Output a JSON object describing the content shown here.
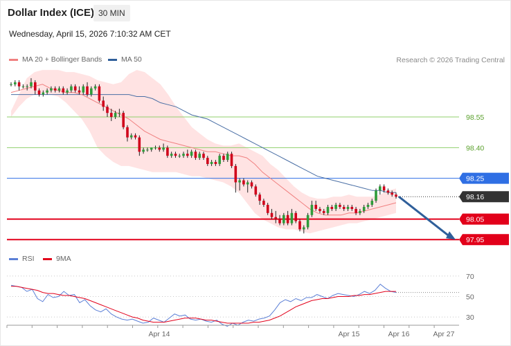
{
  "header": {
    "title": "Dollar Index (ICE)",
    "timeframe": "30 MIN",
    "datetime": "Wednesday, April 15, 2026 7:10:32 AM CET"
  },
  "legend_main": {
    "ma20_label": "MA 20 + Bollinger Bands",
    "ma50_label": "MA 50",
    "credit": "Research © 2026 Trading Central"
  },
  "legend_rsi": {
    "rsi_label": "RSI",
    "ma9_label": "9MA"
  },
  "colors": {
    "up": "#2e9c3a",
    "down": "#d0021b",
    "ma20": "#f08080",
    "ma50": "#4a6fa5",
    "bands": "#ffe3e3",
    "resistance": "#8fcf6b",
    "pivot": "#2f6fe4",
    "support": "#e2001a",
    "rsi": "#5b7fd6",
    "arrow": "#2f5f9a"
  },
  "chart_data": [
    {
      "type": "candlestick",
      "title": "Dollar Index (ICE)",
      "timeframe": "30 MIN",
      "x_ticks": [
        "Apr 14",
        "Apr 15",
        "Apr 16",
        "Apr 27"
      ],
      "ylim": [
        97.91,
        98.75
      ],
      "levels": [
        {
          "value": 98.55,
          "kind": "resistance",
          "label": "98.55"
        },
        {
          "value": 98.4,
          "kind": "resistance",
          "label": "98.40"
        },
        {
          "value": 98.25,
          "kind": "pivot",
          "label": "98.25"
        },
        {
          "value": 98.16,
          "kind": "current",
          "label": "98.16"
        },
        {
          "value": 98.05,
          "kind": "support",
          "label": "98.05"
        },
        {
          "value": 97.95,
          "kind": "support",
          "label": "97.95"
        }
      ],
      "candles": [
        [
          98.71,
          98.72,
          98.7,
          98.71
        ],
        [
          98.71,
          98.73,
          98.7,
          98.72
        ],
        [
          98.72,
          98.73,
          98.68,
          98.7
        ],
        [
          98.7,
          98.71,
          98.69,
          98.7
        ],
        [
          98.7,
          98.71,
          98.68,
          98.7
        ],
        [
          98.7,
          98.74,
          98.69,
          98.72
        ],
        [
          98.72,
          98.73,
          98.66,
          98.68
        ],
        [
          98.68,
          98.69,
          98.65,
          98.66
        ],
        [
          98.66,
          98.68,
          98.65,
          98.67
        ],
        [
          98.67,
          98.69,
          98.66,
          98.68
        ],
        [
          98.68,
          98.7,
          98.67,
          98.69
        ],
        [
          98.69,
          98.7,
          98.67,
          98.68
        ],
        [
          98.68,
          98.7,
          98.67,
          98.69
        ],
        [
          98.69,
          98.7,
          98.66,
          98.67
        ],
        [
          98.67,
          98.69,
          98.66,
          98.68
        ],
        [
          98.68,
          98.71,
          98.67,
          98.7
        ],
        [
          98.7,
          98.71,
          98.67,
          98.68
        ],
        [
          98.68,
          98.7,
          98.66,
          98.67
        ],
        [
          98.67,
          98.71,
          98.66,
          98.7
        ],
        [
          98.7,
          98.72,
          98.65,
          98.66
        ],
        [
          98.66,
          98.7,
          98.65,
          98.69
        ],
        [
          98.69,
          98.71,
          98.68,
          98.7
        ],
        [
          98.7,
          98.71,
          98.62,
          98.63
        ],
        [
          98.63,
          98.65,
          98.58,
          98.6
        ],
        [
          98.6,
          98.61,
          98.55,
          98.57
        ],
        [
          98.57,
          98.59,
          98.53,
          98.55
        ],
        [
          98.55,
          98.58,
          98.54,
          98.57
        ],
        [
          98.57,
          98.59,
          98.55,
          98.57
        ],
        [
          98.57,
          98.58,
          98.49,
          98.5
        ],
        [
          98.5,
          98.51,
          98.43,
          98.45
        ],
        [
          98.45,
          98.47,
          98.44,
          98.46
        ],
        [
          98.46,
          98.47,
          98.44,
          98.45
        ],
        [
          98.45,
          98.46,
          98.36,
          98.38
        ],
        [
          98.38,
          98.4,
          98.37,
          98.39
        ],
        [
          98.39,
          98.4,
          98.38,
          98.39
        ],
        [
          98.39,
          98.4,
          98.38,
          98.4
        ],
        [
          98.4,
          98.41,
          98.39,
          98.4
        ],
        [
          98.4,
          98.41,
          98.38,
          98.39
        ],
        [
          98.39,
          98.42,
          98.38,
          98.4
        ],
        [
          98.4,
          98.41,
          98.35,
          98.36
        ],
        [
          98.36,
          98.38,
          98.35,
          98.37
        ],
        [
          98.37,
          98.38,
          98.35,
          98.36
        ],
        [
          98.36,
          98.37,
          98.35,
          98.36
        ],
        [
          98.36,
          98.38,
          98.35,
          98.37
        ],
        [
          98.37,
          98.39,
          98.35,
          98.36
        ],
        [
          98.36,
          98.39,
          98.35,
          98.38
        ],
        [
          98.38,
          98.39,
          98.34,
          98.35
        ],
        [
          98.35,
          98.38,
          98.34,
          98.37
        ],
        [
          98.37,
          98.38,
          98.34,
          98.35
        ],
        [
          98.35,
          98.36,
          98.31,
          98.32
        ],
        [
          98.32,
          98.34,
          98.31,
          98.33
        ],
        [
          98.33,
          98.34,
          98.31,
          98.32
        ],
        [
          98.32,
          98.37,
          98.31,
          98.36
        ],
        [
          98.36,
          98.37,
          98.33,
          98.34
        ],
        [
          98.34,
          98.38,
          98.33,
          98.37
        ],
        [
          98.37,
          98.38,
          98.3,
          98.31
        ],
        [
          98.31,
          98.32,
          98.18,
          98.23
        ],
        [
          98.23,
          98.25,
          98.19,
          98.24
        ],
        [
          98.24,
          98.25,
          98.21,
          98.22
        ],
        [
          98.22,
          98.24,
          98.18,
          98.23
        ],
        [
          98.23,
          98.24,
          98.2,
          98.21
        ],
        [
          98.21,
          98.22,
          98.16,
          98.17
        ],
        [
          98.17,
          98.18,
          98.12,
          98.14
        ],
        [
          98.14,
          98.15,
          98.11,
          98.12
        ],
        [
          98.12,
          98.13,
          98.07,
          98.08
        ],
        [
          98.08,
          98.1,
          98.05,
          98.06
        ],
        [
          98.06,
          98.09,
          98.03,
          98.05
        ],
        [
          98.05,
          98.07,
          98.02,
          98.03
        ],
        [
          98.03,
          98.08,
          98.02,
          98.07
        ],
        [
          98.07,
          98.09,
          98.02,
          98.03
        ],
        [
          98.03,
          98.1,
          98.02,
          98.08
        ],
        [
          98.08,
          98.09,
          98.03,
          98.04
        ],
        [
          98.04,
          98.05,
          97.99,
          98.0
        ],
        [
          98.0,
          98.02,
          97.98,
          98.01
        ],
        [
          98.01,
          98.08,
          98.0,
          98.07
        ],
        [
          98.07,
          98.14,
          98.06,
          98.12
        ],
        [
          98.12,
          98.14,
          98.09,
          98.1
        ],
        [
          98.1,
          98.11,
          98.08,
          98.09
        ],
        [
          98.09,
          98.1,
          98.07,
          98.08
        ],
        [
          98.08,
          98.12,
          98.07,
          98.11
        ],
        [
          98.11,
          98.12,
          98.09,
          98.1
        ],
        [
          98.1,
          98.13,
          98.09,
          98.12
        ],
        [
          98.12,
          98.13,
          98.1,
          98.11
        ],
        [
          98.11,
          98.12,
          98.09,
          98.1
        ],
        [
          98.1,
          98.12,
          98.09,
          98.11
        ],
        [
          98.11,
          98.12,
          98.09,
          98.1
        ],
        [
          98.1,
          98.11,
          98.07,
          98.08
        ],
        [
          98.08,
          98.1,
          98.07,
          98.09
        ],
        [
          98.09,
          98.12,
          98.08,
          98.11
        ],
        [
          98.11,
          98.13,
          98.1,
          98.12
        ],
        [
          98.12,
          98.15,
          98.11,
          98.14
        ],
        [
          98.14,
          98.2,
          98.13,
          98.19
        ],
        [
          98.19,
          98.22,
          98.17,
          98.21
        ],
        [
          98.21,
          98.22,
          98.18,
          98.19
        ],
        [
          98.19,
          98.2,
          98.17,
          98.18
        ],
        [
          98.18,
          98.19,
          98.16,
          98.17
        ],
        [
          98.17,
          98.18,
          98.15,
          98.16
        ]
      ],
      "ma20": [
        98.67,
        98.68,
        98.69,
        98.7,
        98.71,
        98.69,
        98.68,
        98.67,
        98.67,
        98.66,
        98.64,
        98.62,
        98.6,
        98.58,
        98.56,
        98.54,
        98.51,
        98.48,
        98.46,
        98.44,
        98.43,
        98.42,
        98.41,
        98.4,
        98.39,
        98.38,
        98.38,
        98.37,
        98.36,
        98.36,
        98.35,
        98.32,
        98.28,
        98.25,
        98.22,
        98.19,
        98.16,
        98.13,
        98.1,
        98.08,
        98.07,
        98.07,
        98.07,
        98.08,
        98.08,
        98.09,
        98.1,
        98.11,
        98.12,
        98.13
      ],
      "bb_upper": [
        98.58,
        98.66,
        98.74,
        98.77,
        98.78,
        98.78,
        98.78,
        98.77,
        98.77,
        98.76,
        98.75,
        98.73,
        98.72,
        98.71,
        98.72,
        98.76,
        98.78,
        98.77,
        98.74,
        98.71,
        98.66,
        98.6,
        98.55,
        98.5,
        98.47,
        98.44,
        98.42,
        98.41,
        98.41,
        98.42,
        98.4,
        98.38,
        98.36,
        98.32,
        98.29,
        98.25,
        98.21,
        98.18,
        98.16,
        98.15,
        98.15,
        98.16,
        98.16,
        98.17,
        98.16,
        98.16,
        98.16,
        98.17,
        98.19,
        98.2
      ],
      "bb_lower": [
        98.55,
        98.6,
        98.64,
        98.66,
        98.67,
        98.66,
        98.65,
        98.62,
        98.58,
        98.54,
        98.48,
        98.4,
        98.36,
        98.33,
        98.31,
        98.31,
        98.3,
        98.29,
        98.28,
        98.28,
        98.28,
        98.28,
        98.27,
        98.26,
        98.26,
        98.25,
        98.24,
        98.23,
        98.21,
        98.18,
        98.13,
        98.08,
        98.05,
        98.03,
        98.01,
        98.0,
        98.0,
        97.99,
        97.98,
        97.99,
        98.0,
        98.01,
        98.02,
        98.03,
        98.03,
        98.04,
        98.05,
        98.06,
        98.07,
        98.08
      ],
      "ma50": [
        98.66,
        98.66,
        98.66,
        98.66,
        98.66,
        98.66,
        98.66,
        98.66,
        98.66,
        98.66,
        98.66,
        98.66,
        98.66,
        98.66,
        98.66,
        98.66,
        98.65,
        98.65,
        98.64,
        98.62,
        98.61,
        98.6,
        98.58,
        98.56,
        98.55,
        98.54,
        98.52,
        98.5,
        98.48,
        98.46,
        98.44,
        98.42,
        98.4,
        98.38,
        98.36,
        98.34,
        98.32,
        98.3,
        98.28,
        98.26,
        98.25,
        98.24,
        98.23,
        98.22,
        98.21,
        98.2,
        98.19,
        98.19,
        98.18,
        98.18
      ],
      "forecast_arrow": {
        "from": 98.16,
        "to": 97.95
      }
    },
    {
      "type": "line",
      "title": "RSI",
      "ylim": [
        22,
        76
      ],
      "y_ticks": [
        "70",
        "50",
        "30"
      ],
      "series": [
        {
          "name": "RSI",
          "values": [
            61,
            60,
            59,
            55,
            57,
            48,
            45,
            52,
            49,
            50,
            55,
            51,
            52,
            44,
            47,
            41,
            37,
            35,
            38,
            33,
            30,
            28,
            27,
            28,
            26,
            24,
            25,
            29,
            27,
            25,
            29,
            33,
            31,
            32,
            28,
            27,
            28,
            26,
            25,
            27,
            23,
            21,
            24,
            22,
            25,
            27,
            26,
            28,
            29,
            31,
            37,
            44,
            47,
            45,
            48,
            46,
            49,
            49,
            52,
            50,
            48,
            51,
            53,
            52,
            51,
            50,
            52,
            55,
            53,
            56,
            62,
            58,
            55,
            54
          ]
        },
        {
          "name": "9MA",
          "values": [
            60,
            60,
            59,
            58,
            57,
            56,
            54,
            53,
            53,
            52,
            51,
            51,
            50,
            49,
            48,
            46,
            44,
            42,
            40,
            38,
            36,
            34,
            32,
            30,
            29,
            27,
            26,
            25,
            25,
            25,
            26,
            27,
            28,
            29,
            29,
            29,
            28,
            27,
            27,
            26,
            25,
            24,
            24,
            24,
            24,
            24,
            25,
            25,
            26,
            27,
            29,
            31,
            34,
            37,
            40,
            42,
            44,
            46,
            47,
            48,
            48,
            49,
            50,
            50,
            50,
            51,
            51,
            52,
            52,
            53,
            54,
            55,
            55,
            55
          ]
        }
      ]
    }
  ]
}
